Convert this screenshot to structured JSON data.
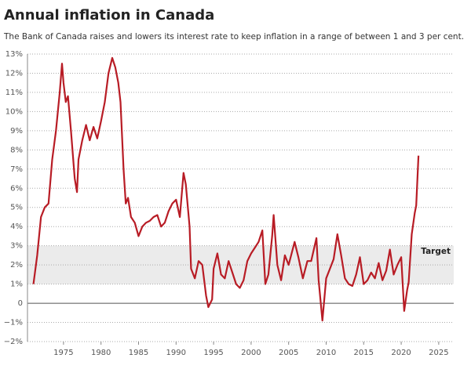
{
  "chart_data": {
    "type": "line",
    "title": "Annual inflation in Canada",
    "subtitle": "The Bank of Canada raises and lowers its interest rate to keep inflation in a range of between 1 and 3 per cent.",
    "annotation": "Target",
    "target_band": [
      1,
      3
    ],
    "grid": true,
    "xlim": [
      1970.2,
      2027
    ],
    "ylim": [
      -2,
      13
    ],
    "xticks": [
      1975,
      1980,
      1985,
      1990,
      1995,
      2000,
      2005,
      2010,
      2015,
      2020,
      2025
    ],
    "yticks": [
      {
        "value": -2,
        "label": "−2%"
      },
      {
        "value": -1,
        "label": "−1%"
      },
      {
        "value": 0,
        "label": "0"
      },
      {
        "value": 1,
        "label": "1%"
      },
      {
        "value": 2,
        "label": "2%"
      },
      {
        "value": 3,
        "label": "3%"
      },
      {
        "value": 4,
        "label": "4%"
      },
      {
        "value": 5,
        "label": "5%"
      },
      {
        "value": 6,
        "label": "6%"
      },
      {
        "value": 7,
        "label": "7%"
      },
      {
        "value": 8,
        "label": "8%"
      },
      {
        "value": 9,
        "label": "9%"
      },
      {
        "value": 10,
        "label": "10%"
      },
      {
        "value": 11,
        "label": "11%"
      },
      {
        "value": 12,
        "label": "12%"
      },
      {
        "value": 13,
        "label": "13%"
      }
    ],
    "x": [
      1971.0,
      1971.5,
      1972.0,
      1972.5,
      1973.0,
      1973.5,
      1974.0,
      1974.5,
      1974.8,
      1975.0,
      1975.3,
      1975.6,
      1976.0,
      1976.5,
      1976.8,
      1977.0,
      1977.5,
      1978.0,
      1978.5,
      1979.0,
      1979.5,
      1980.0,
      1980.5,
      1981.0,
      1981.5,
      1981.9,
      1982.3,
      1982.6,
      1983.0,
      1983.3,
      1983.6,
      1984.0,
      1984.5,
      1985.0,
      1985.5,
      1986.0,
      1986.5,
      1987.0,
      1987.5,
      1988.0,
      1988.5,
      1989.0,
      1989.5,
      1990.0,
      1990.5,
      1991.0,
      1991.3,
      1991.8,
      1992.0,
      1992.5,
      1993.0,
      1993.5,
      1994.0,
      1994.3,
      1994.8,
      1995.0,
      1995.5,
      1996.0,
      1996.5,
      1997.0,
      1997.5,
      1998.0,
      1998.5,
      1999.0,
      1999.5,
      2000.0,
      2000.5,
      2001.0,
      2001.5,
      2001.9,
      2002.3,
      2002.8,
      2003.0,
      2003.5,
      2004.0,
      2004.5,
      2005.0,
      2005.8,
      2006.3,
      2006.9,
      2007.5,
      2008.0,
      2008.7,
      2009.0,
      2009.5,
      2010.0,
      2010.5,
      2011.0,
      2011.5,
      2012.0,
      2012.5,
      2013.0,
      2013.5,
      2014.0,
      2014.5,
      2015.0,
      2015.5,
      2016.0,
      2016.5,
      2017.0,
      2017.5,
      2018.0,
      2018.5,
      2019.0,
      2019.5,
      2020.0,
      2020.4,
      2020.8,
      2021.0,
      2021.4,
      2021.8,
      2022.0,
      2022.3
    ],
    "series": [
      {
        "color": "#b81c25",
        "values": [
          1.0,
          2.5,
          4.5,
          5.0,
          5.2,
          7.5,
          9.0,
          11.0,
          12.5,
          11.5,
          10.5,
          10.8,
          9.0,
          6.5,
          5.8,
          7.5,
          8.5,
          9.3,
          8.5,
          9.2,
          8.6,
          9.5,
          10.5,
          12.0,
          12.8,
          12.3,
          11.5,
          10.5,
          7.0,
          5.2,
          5.5,
          4.5,
          4.2,
          3.5,
          4.0,
          4.2,
          4.3,
          4.5,
          4.6,
          4.0,
          4.2,
          4.8,
          5.2,
          5.4,
          4.5,
          6.8,
          6.2,
          4.0,
          1.8,
          1.3,
          2.2,
          2.0,
          0.4,
          -0.2,
          0.2,
          1.8,
          2.6,
          1.5,
          1.3,
          2.2,
          1.6,
          1.0,
          0.8,
          1.2,
          2.2,
          2.6,
          2.9,
          3.2,
          3.8,
          1.0,
          1.5,
          3.5,
          4.6,
          2.0,
          1.2,
          2.5,
          2.0,
          3.2,
          2.4,
          1.3,
          2.2,
          2.2,
          3.4,
          1.2,
          -0.9,
          1.3,
          1.8,
          2.3,
          3.6,
          2.5,
          1.3,
          1.0,
          0.9,
          1.5,
          2.4,
          1.0,
          1.2,
          1.6,
          1.3,
          2.1,
          1.2,
          1.7,
          2.8,
          1.5,
          2.0,
          2.4,
          -0.4,
          0.7,
          1.1,
          3.6,
          4.7,
          5.1,
          7.7
        ]
      }
    ]
  }
}
